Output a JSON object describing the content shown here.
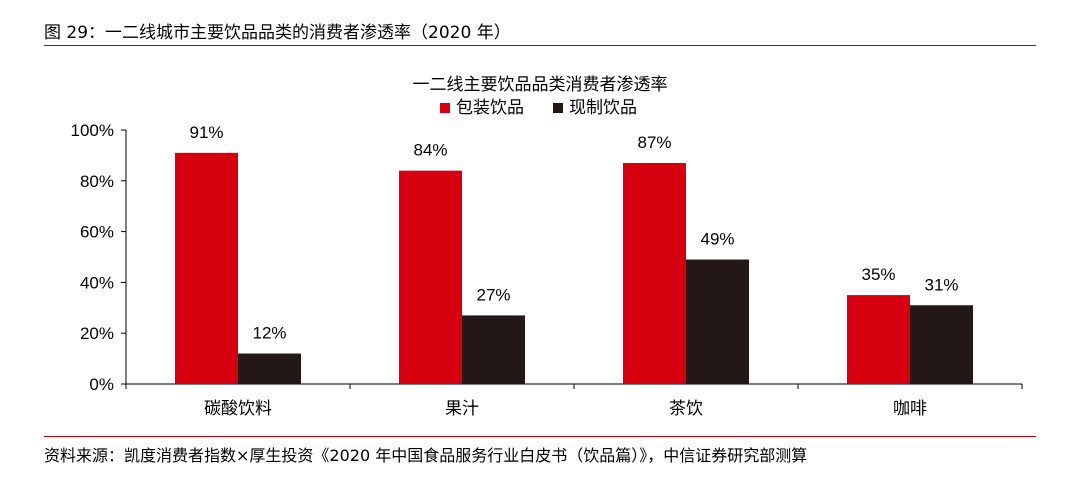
{
  "caption": "图 29：一二线城市主要饮品品类的消费者渗透率（2020 年）",
  "source": "资料来源：凯度消费者指数×厚生投资《2020 年中国食品服务行业白皮书（饮品篇）》，中信证券研究部测算",
  "colors": {
    "rule": "#c00000"
  },
  "chart_data": {
    "type": "bar",
    "title": "一二线主要饮品品类消费者渗透率",
    "categories": [
      "碳酸饮料",
      "果汁",
      "茶饮",
      "咖啡"
    ],
    "series": [
      {
        "name": "包装饮品",
        "values": [
          91,
          84,
          87,
          35
        ],
        "labels": [
          "91%",
          "84%",
          "87%",
          "35%"
        ],
        "color": "#d7000f"
      },
      {
        "name": "现制饮品",
        "values": [
          12,
          27,
          49,
          31
        ],
        "labels": [
          "12%",
          "27%",
          "49%",
          "31%"
        ],
        "color": "#231815"
      }
    ],
    "yticks": [
      "0%",
      "20%",
      "40%",
      "60%",
      "80%",
      "100%"
    ],
    "ylim": [
      0,
      100
    ],
    "legend_position": "top-center",
    "grid": false
  }
}
